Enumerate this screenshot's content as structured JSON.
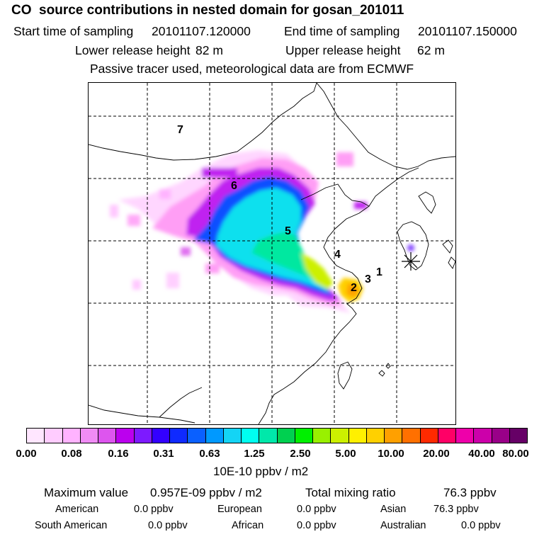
{
  "header": {
    "title": "CO  source contributions in nested domain for gosan_201011",
    "start_label": "Start time of sampling",
    "start_value": "20101107.120000",
    "end_label": "End time of sampling",
    "end_value": "20101107.150000",
    "lower_label": "Lower release height",
    "lower_value": "82 m",
    "upper_label": "Upper release height",
    "upper_value": "62 m",
    "note": "Passive tracer used, meteorological data are from ECMWF"
  },
  "map": {
    "source_labels": [
      "1",
      "2",
      "3",
      "4",
      "5",
      "6",
      "7"
    ],
    "receptor_marker": "star-marker-icon"
  },
  "colorbar": {
    "colors": [
      "#ffe6ff",
      "#ffccff",
      "#ffb3ff",
      "#f08cf5",
      "#dd55ee",
      "#bb00ee",
      "#7d1aff",
      "#3300ff",
      "#0f2aff",
      "#0a60ff",
      "#0099ff",
      "#14d4f5",
      "#00fff0",
      "#00e8aa",
      "#00d050",
      "#00f000",
      "#99f000",
      "#ccf000",
      "#fff000",
      "#ffd000",
      "#ffa000",
      "#ff7000",
      "#ff2a00",
      "#ff0066",
      "#ee00aa",
      "#cc00aa",
      "#990088",
      "#660066"
    ],
    "ticks": [
      "0.00",
      "0.08",
      "0.16",
      "0.31",
      "0.63",
      "1.25",
      "2.50",
      "5.00",
      "10.00",
      "20.00",
      "40.00",
      "80.00"
    ],
    "units": "10E-10 ppbv / m2"
  },
  "summary": {
    "max_label": "Maximum value",
    "max_value": "0.957E-09 ppbv / m2",
    "total_label": "Total mixing ratio",
    "total_value": "76.3 ppbv",
    "regions": [
      {
        "name": "American",
        "value": "0.0 ppbv"
      },
      {
        "name": "European",
        "value": "0.0 ppbv"
      },
      {
        "name": "Asian",
        "value": "76.3 ppbv"
      },
      {
        "name": "South American",
        "value": "0.0 ppbv"
      },
      {
        "name": "African",
        "value": "0.0 ppbv"
      },
      {
        "name": "Australian",
        "value": "0.0 ppbv"
      }
    ]
  }
}
